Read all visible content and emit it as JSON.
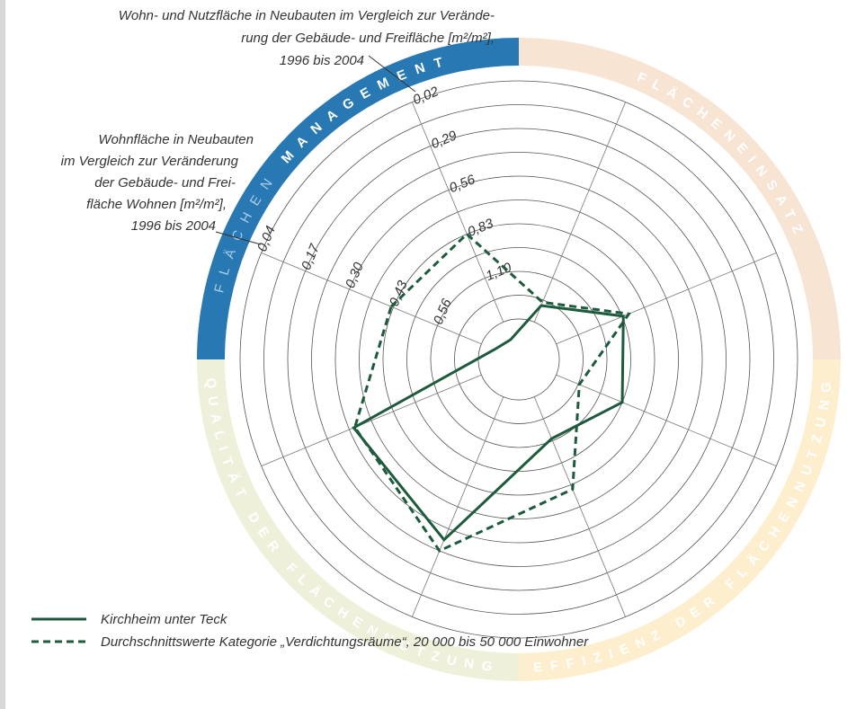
{
  "chart_data": {
    "type": "radar",
    "annotations": [
      {
        "lines": [
          "Wohn- und Nutzfläche in Neubauten im Vergleich zur Verände-",
          "rung der Gebäude- und Freifläche [m²/m²],",
          "1996 bis 2004"
        ]
      },
      {
        "lines": [
          "Wohnfläche in Neubauten",
          "im Vergleich zur Veränderung",
          "der Gebäude- und Frei-",
          "fläche Wohnen [m²/m²],",
          "1996 bis 2004"
        ]
      }
    ],
    "segments": [
      {
        "label_parts": [
          "FLÄCHEN",
          "MANAGEMENT"
        ],
        "color": "#2878b4",
        "label_colors": [
          "#a9cde8",
          "#ffffff"
        ]
      },
      {
        "label_parts": [
          "FLÄCHENEINSATZ"
        ],
        "color": "#f8e4d3",
        "label_colors": [
          "#ffffff"
        ]
      },
      {
        "label_parts": [
          "EFFIZIENZ DER FLÄCHENNUTZUNG"
        ],
        "color": "#fdeecd",
        "label_colors": [
          "#ffffff"
        ]
      },
      {
        "label_parts": [
          "QUALITÄT DER FLÄCHENNUTZUNG"
        ],
        "color": "#eff0da",
        "label_colors": [
          "#ffffff"
        ]
      }
    ],
    "rlim": [
      -1.7,
      10
    ],
    "rticks": [
      0,
      1,
      2,
      3,
      4,
      5,
      6,
      7,
      8,
      9,
      10
    ],
    "grid": true,
    "axis_ticks": [
      [
        {
          "value": 10,
          "label": "0,04"
        },
        {
          "value": 8,
          "label": "0,17"
        },
        {
          "value": 6,
          "label": "0,30"
        },
        {
          "value": 4,
          "label": "0,43"
        },
        {
          "value": 2,
          "label": "0,56"
        }
      ],
      [
        {
          "value": 10,
          "label": "0,02"
        },
        {
          "value": 8,
          "label": "0,29"
        },
        {
          "value": 6,
          "label": "0,56"
        },
        {
          "value": 4,
          "label": "0,83"
        },
        {
          "value": 2,
          "label": "1,10"
        }
      ]
    ],
    "series": [
      {
        "name": "Kirchheim unter Teck",
        "color": "#1e5a3c",
        "line_style": "solid",
        "values": [
          -0.6,
          -0.8,
          0.75,
          3.05,
          3.0,
          1.9,
          6.5,
          5.8
        ]
      },
      {
        "name": "Durchschnittswerte Kategorie „Verdichtungsräume“, 20 000 bis 50 000 Einwohner",
        "color": "#1e5a3c",
        "line_style": "dashed",
        "values": [
          4.1,
          4.0,
          0.9,
          3.3,
          1.05,
          4.2,
          7.0,
          5.75
        ]
      }
    ]
  }
}
